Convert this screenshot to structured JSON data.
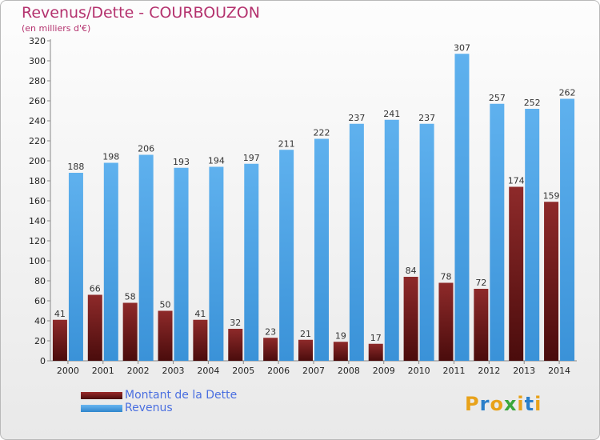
{
  "title": "Revenus/Dette - COURBOUZON",
  "subtitle": "(en milliers d'€)",
  "logo_text": "Proxiti",
  "colors": {
    "dette": "#7a1f1f",
    "revenus": "#4aa3e8",
    "title": "#b4326e",
    "legend_text": "#4a6fe0"
  },
  "chart_data": {
    "type": "bar",
    "title": "Revenus/Dette - COURBOUZON",
    "subtitle": "(en milliers d'€)",
    "categories": [
      "2000",
      "2001",
      "2002",
      "2003",
      "2004",
      "2005",
      "2006",
      "2007",
      "2008",
      "2009",
      "2010",
      "2011",
      "2012",
      "2013",
      "2014"
    ],
    "series": [
      {
        "name": "Montant de la Dette",
        "values": [
          41,
          66,
          58,
          50,
          41,
          32,
          23,
          21,
          19,
          17,
          84,
          78,
          72,
          174,
          159
        ]
      },
      {
        "name": "Revenus",
        "values": [
          188,
          198,
          206,
          193,
          194,
          197,
          211,
          222,
          237,
          241,
          237,
          307,
          257,
          252,
          262
        ]
      }
    ],
    "ylim": [
      0,
      320
    ],
    "ytick_step": 20,
    "grid": false,
    "legend_position": "bottom-left"
  }
}
